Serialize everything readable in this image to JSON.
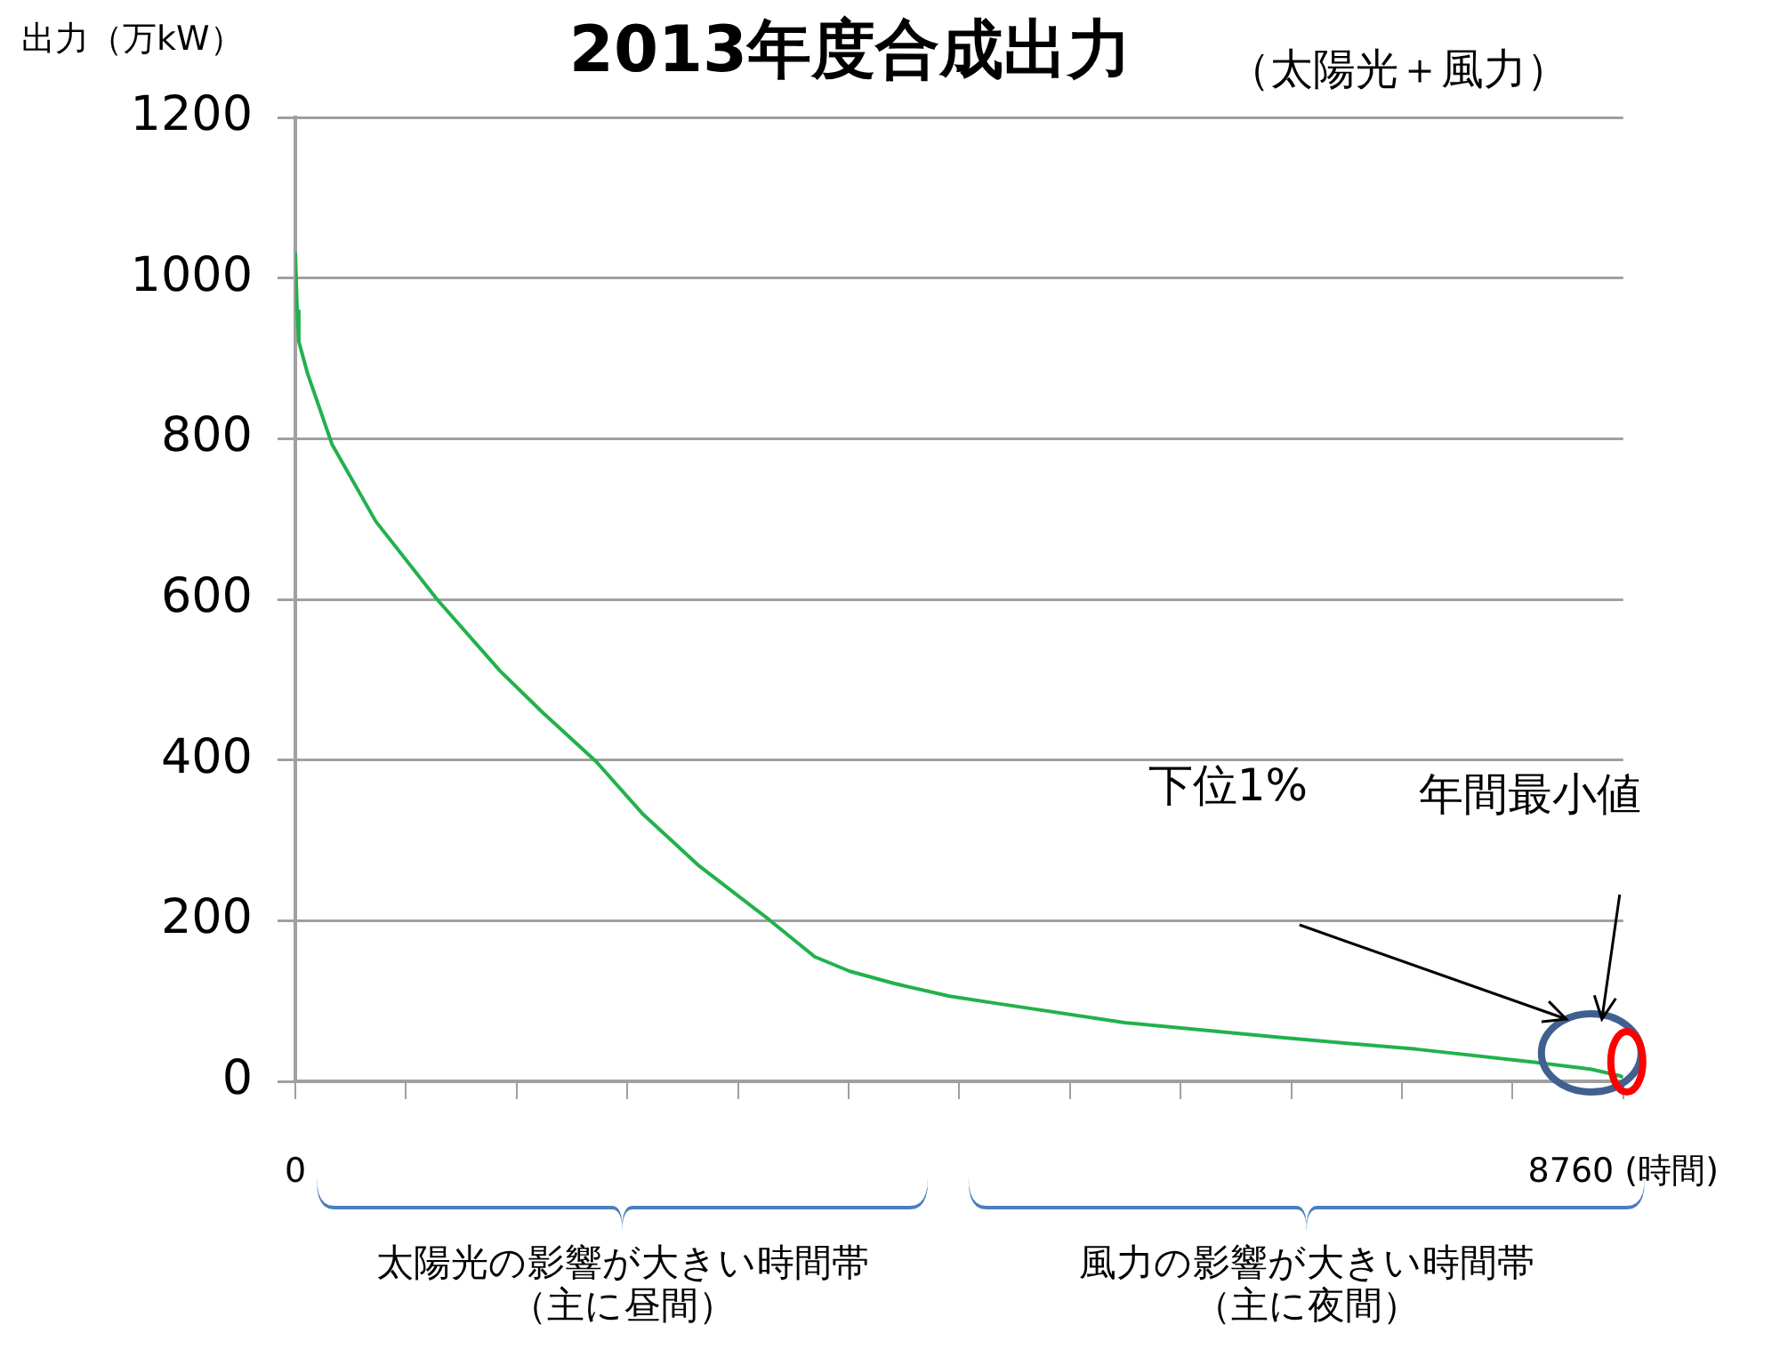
{
  "chart_data": {
    "type": "line",
    "title": "2013年度合成出力",
    "subtitle": "（太陽光＋風力）",
    "ylabel": "出力（万kW）",
    "x": [
      0,
      12,
      23,
      81,
      242,
      531,
      935,
      1350,
      1627,
      1985,
      2296,
      2665,
      3127,
      3427,
      3658,
      3946,
      4316,
      4627,
      5471,
      6474,
      7397,
      8159,
      8551,
      8736,
      8760
    ],
    "series": [
      {
        "color": "#22b14c",
        "values": [
          1032,
          959,
          921,
          881,
          793,
          697,
          600,
          511,
          460,
          398,
          332,
          268,
          201,
          155,
          137,
          122,
          106,
          97,
          73,
          55,
          40,
          24,
          15,
          7,
          5
        ]
      }
    ],
    "xlim": [
      0,
      8760
    ],
    "xticks": [
      0,
      {
        "value": 730,
        "label": null
      },
      {
        "value": 1460,
        "label": null
      },
      {
        "value": 2190,
        "label": null
      },
      {
        "value": 2920,
        "label": null
      },
      {
        "value": 3650,
        "label": null
      },
      {
        "value": 4380,
        "label": null
      },
      {
        "value": 5110,
        "label": null
      },
      {
        "value": 5840,
        "label": null
      },
      {
        "value": 6570,
        "label": null
      },
      {
        "value": 7300,
        "label": null
      },
      {
        "value": 8030,
        "label": null
      },
      {
        "value": 8760,
        "label": "8760 (時間)"
      }
    ],
    "ylim": [
      0,
      1200
    ],
    "yticks": [
      0,
      200,
      400,
      600,
      800,
      1000,
      1200
    ],
    "grid": "y",
    "legend": false,
    "marker": "none",
    "line_style": "solid",
    "annotations": [
      "下位1%",
      "年間最小値",
      "太陽光の影響が大きい時間帯（主に昼間）",
      "風力の影響が大きい時間帯（主に夜間）"
    ]
  }
}
